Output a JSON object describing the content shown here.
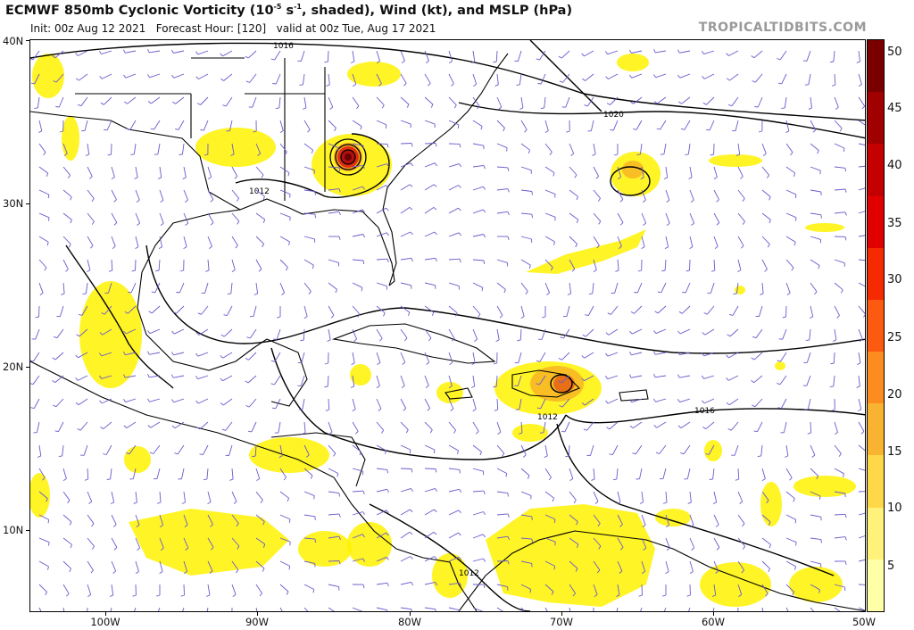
{
  "header": {
    "title_prefix": "ECMWF 850mb Cyclonic Vorticity (10",
    "title_exp": "-5",
    "title_mid": " s",
    "title_exp2": "-1",
    "title_suffix": ", shaded), Wind (kt), and MSLP (hPa)",
    "init_text": "Init: 00z Aug 12 2021",
    "forecast_text": "Forecast Hour: [120]",
    "valid_text": "valid at 00z Tue, Aug 17 2021",
    "brand": "TROPICALTIDBITS.COM"
  },
  "map": {
    "lat_labels": [
      "40N",
      "30N",
      "20N",
      "10N"
    ],
    "lon_labels": [
      "100W",
      "90W",
      "80W",
      "70W",
      "60W",
      "50W"
    ],
    "isobar_labels": [
      "1016",
      "1020",
      "1012",
      "1012",
      "1016",
      "1012"
    ],
    "colors": {
      "land": "#ffffff",
      "coast": "#000000",
      "isobar": "#000000",
      "barb": "#6a5acd",
      "vort_low": "#fff200",
      "vort_mid": "#f5a623",
      "vort_high": "#b22222"
    }
  },
  "colorbar": {
    "ticks": [
      "50",
      "45",
      "40",
      "35",
      "30",
      "25",
      "20",
      "15",
      "10",
      "5"
    ],
    "colors": [
      "#7a0000",
      "#a00000",
      "#c40000",
      "#e00000",
      "#f52a00",
      "#fb5a10",
      "#fd8c20",
      "#f8b431",
      "#ffd84a",
      "#fff27a",
      "#ffffa8"
    ]
  }
}
